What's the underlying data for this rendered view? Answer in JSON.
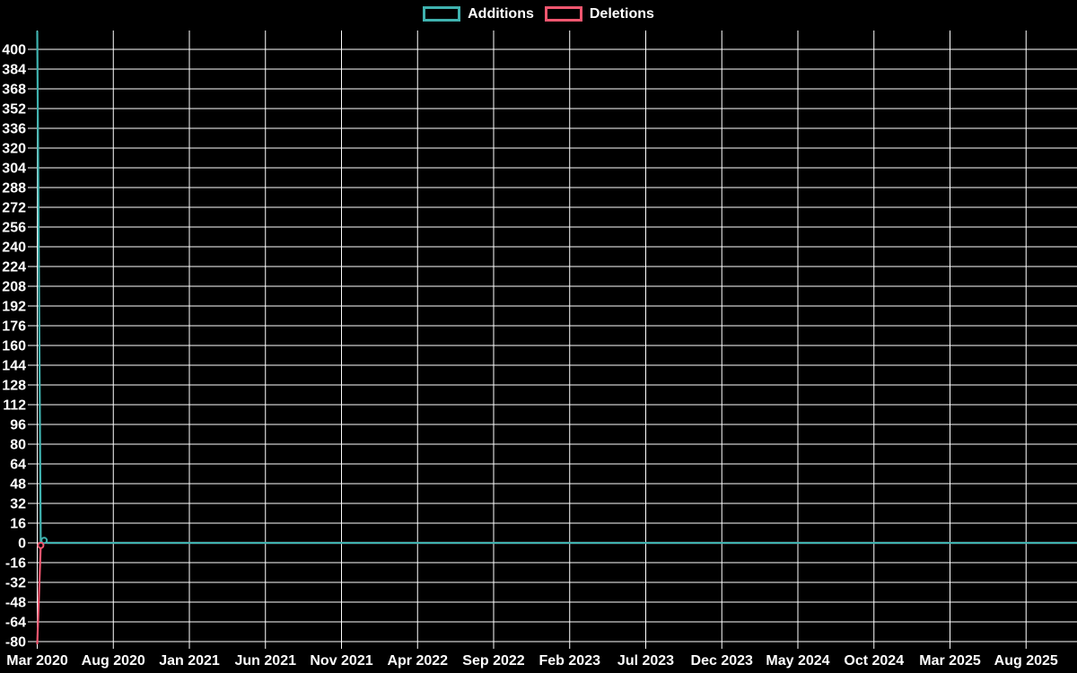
{
  "page": {
    "background": "#000000"
  },
  "legend": {
    "items": [
      {
        "label": "Additions",
        "color": "#3fb2af"
      },
      {
        "label": "Deletions",
        "color": "#f3566f"
      }
    ]
  },
  "chart_data": {
    "type": "line",
    "title": "",
    "legend_position": "top",
    "grid": true,
    "background": "#000000",
    "grid_color": "#ffffff",
    "axis_text_color": "#ffffff",
    "x_unit": "week",
    "x_tick_labels": [
      "Mar 2020",
      "Aug 2020",
      "Jan 2021",
      "Jun 2021",
      "Nov 2021",
      "Apr 2022",
      "Sep 2022",
      "Feb 2023",
      "Jul 2023",
      "Dec 2023",
      "May 2024",
      "Oct 2024",
      "Mar 2025",
      "Aug 2025"
    ],
    "y_tick_labels": [
      400,
      384,
      368,
      352,
      336,
      320,
      304,
      288,
      272,
      256,
      240,
      224,
      208,
      192,
      176,
      160,
      144,
      128,
      112,
      96,
      80,
      64,
      48,
      32,
      16,
      0,
      -16,
      -32,
      -48,
      -64,
      -80
    ],
    "y_tick_step": 16,
    "y_axis_range_estimate": [
      -88,
      416
    ],
    "series": [
      {
        "name": "Additions",
        "color": "#3fb2af",
        "weekly_points": [
          {
            "week": 0,
            "value": 415
          },
          {
            "week": 1,
            "value": 0
          },
          {
            "week": 2,
            "value": 2,
            "marker": true
          }
        ],
        "rest_value": 0,
        "note": "spike at first week (top clipped at plot edge, value estimated); flat at 0 through Aug 2025"
      },
      {
        "name": "Deletions",
        "color": "#f3566f",
        "weekly_points": [
          {
            "week": 0,
            "value": -84
          },
          {
            "week": 1,
            "value": -2,
            "marker": true
          }
        ],
        "rest_value": 0,
        "note": "downward spike at first week (bottom clipped at plot edge, value estimated); flat at 0 through Aug 2025"
      }
    ]
  }
}
